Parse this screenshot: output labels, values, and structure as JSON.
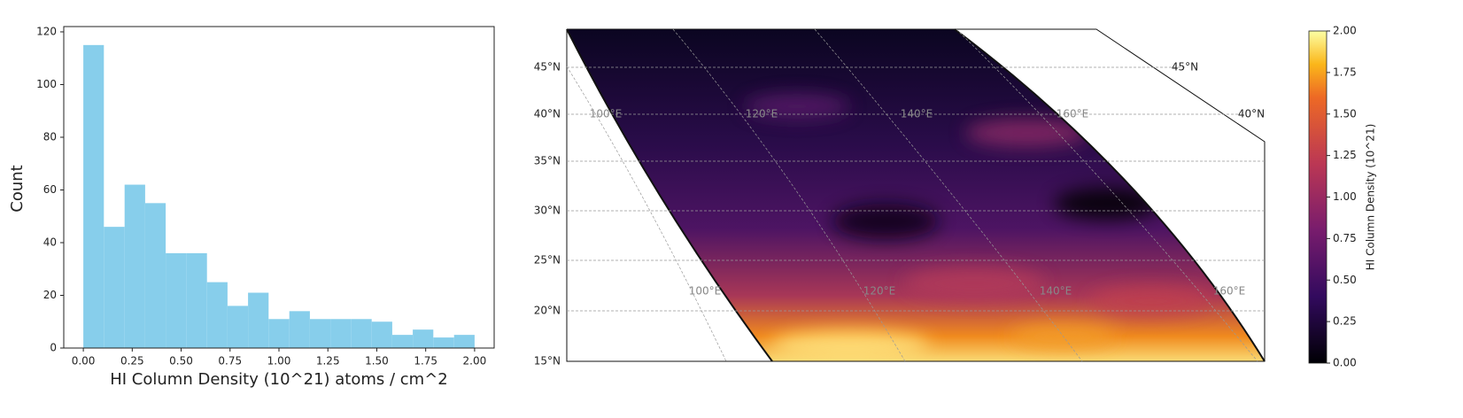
{
  "chart_data": [
    {
      "type": "histogram",
      "xlabel": "HI Column Density (10^21) atoms / cm^2",
      "ylabel": "Count",
      "bins": [
        0,
        0.105,
        0.211,
        0.316,
        0.421,
        0.526,
        0.632,
        0.737,
        0.842,
        0.947,
        1.053,
        1.158,
        1.263,
        1.368,
        1.474,
        1.579,
        1.684,
        1.789,
        1.895,
        2.0
      ],
      "values": [
        115,
        46,
        62,
        55,
        36,
        36,
        25,
        16,
        21,
        11,
        14,
        11,
        11,
        11,
        10,
        5,
        7,
        4,
        5
      ],
      "color": "#87ceeb",
      "xlim": [
        -0.1,
        2.1
      ],
      "ylim": [
        0,
        121
      ],
      "xticks": [
        {
          "value": 0,
          "label": "0.00"
        },
        {
          "value": 0.25,
          "label": "0.25"
        },
        {
          "value": 0.5,
          "label": "0.50"
        },
        {
          "value": 0.75,
          "label": "0.75"
        },
        {
          "value": 1,
          "label": "1.00"
        },
        {
          "value": 1.25,
          "label": "1.25"
        },
        {
          "value": 1.5,
          "label": "1.50"
        },
        {
          "value": 1.75,
          "label": "1.75"
        },
        {
          "value": 2,
          "label": "2.00"
        }
      ],
      "yticks": [
        0,
        20,
        40,
        60,
        80,
        100,
        120
      ]
    },
    {
      "type": "map",
      "lat_labels": [
        "45°N",
        "40°N",
        "35°N",
        "30°N",
        "25°N",
        "20°N",
        "15°N"
      ],
      "lon_labels_top": [
        "100°E",
        "120°E",
        "140°E",
        "160°E"
      ],
      "lon_labels_bottom": [
        "100°E",
        "120°E",
        "140°E",
        "160°E"
      ],
      "edge_labels": [
        "45°N",
        "40°N"
      ],
      "colorbar_label": "HI Column Density (10^21)",
      "clim": [
        0,
        2
      ],
      "cticks": [
        {
          "value": 0,
          "label": "0.00"
        },
        {
          "value": 0.25,
          "label": "0.25"
        },
        {
          "value": 0.5,
          "label": "0.50"
        },
        {
          "value": 0.75,
          "label": "0.75"
        },
        {
          "value": 1,
          "label": "1.00"
        },
        {
          "value": 1.25,
          "label": "1.25"
        },
        {
          "value": 1.5,
          "label": "1.50"
        },
        {
          "value": 1.75,
          "label": "1.75"
        },
        {
          "value": 2,
          "label": "2.00"
        }
      ]
    }
  ]
}
